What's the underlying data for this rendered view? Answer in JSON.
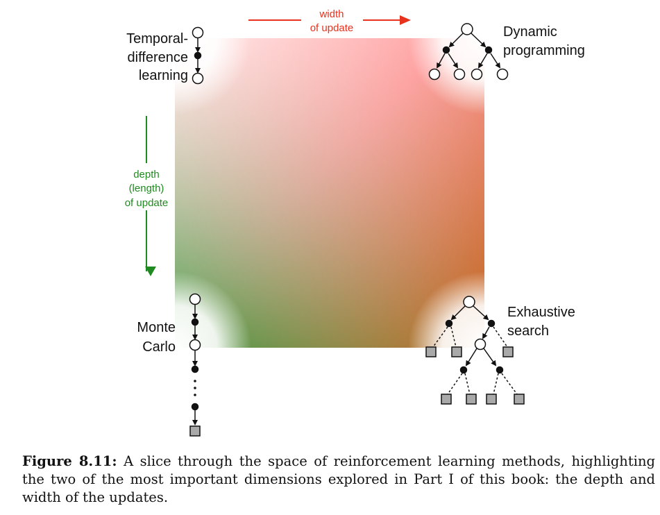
{
  "axes": {
    "width_line1": "width",
    "width_line2": "of update",
    "depth_line1": "depth",
    "depth_line2": "(length)",
    "depth_line3": "of update",
    "width_color": "#e8321e",
    "depth_color": "#1f8a1f"
  },
  "corners": {
    "td_line1": "Temporal-",
    "td_line2": "difference",
    "td_line3": "learning",
    "dp_line1": "Dynamic",
    "dp_line2": "programming",
    "mc_line1": "Monte",
    "mc_line2": "Carlo",
    "es_line1": "Exhaustive",
    "es_line2": "search"
  },
  "gradient_colors": {
    "top_left": "#ffffff",
    "top_right": "#ff9e9e",
    "bottom_left": "#3f9a3f",
    "bottom_right": "#b25a16"
  },
  "caption": {
    "label": "Figure 8.11:",
    "text": " A slice through the space of reinforcement learning methods, highlighting the two of the most important dimensions explored in Part I of this book: the depth and width of the updates."
  }
}
